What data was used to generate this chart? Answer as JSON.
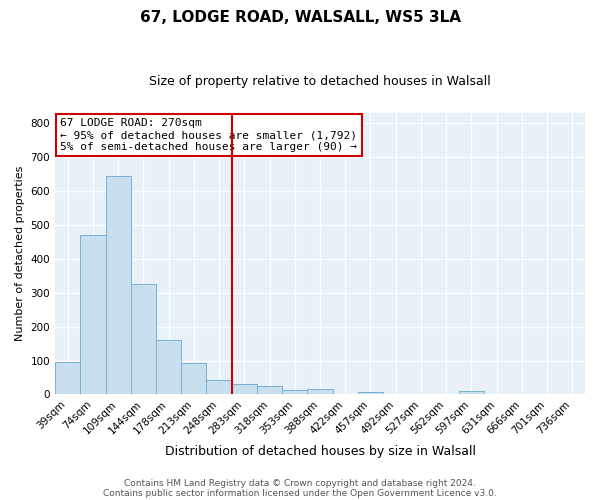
{
  "title": "67, LODGE ROAD, WALSALL, WS5 3LA",
  "subtitle": "Size of property relative to detached houses in Walsall",
  "xlabel": "Distribution of detached houses by size in Walsall",
  "ylabel": "Number of detached properties",
  "bin_labels": [
    "39sqm",
    "74sqm",
    "109sqm",
    "144sqm",
    "178sqm",
    "213sqm",
    "248sqm",
    "283sqm",
    "318sqm",
    "353sqm",
    "388sqm",
    "422sqm",
    "457sqm",
    "492sqm",
    "527sqm",
    "562sqm",
    "597sqm",
    "631sqm",
    "666sqm",
    "701sqm",
    "736sqm"
  ],
  "bar_values": [
    95,
    470,
    645,
    325,
    160,
    92,
    44,
    30,
    25,
    13,
    15,
    0,
    8,
    0,
    0,
    0,
    10,
    0,
    0,
    0,
    0
  ],
  "bar_color": "#c8dff0",
  "bar_edge_color": "#7ab0d4",
  "vline_x": 6.5,
  "vline_color": "#cc0000",
  "ylim": [
    0,
    830
  ],
  "yticks": [
    0,
    100,
    200,
    300,
    400,
    500,
    600,
    700,
    800
  ],
  "annotation_title": "67 LODGE ROAD: 270sqm",
  "annotation_line1": "← 95% of detached houses are smaller (1,792)",
  "annotation_line2": "5% of semi-detached houses are larger (90) →",
  "annotation_box_edge_color": "#cc0000",
  "footer_line1": "Contains HM Land Registry data © Crown copyright and database right 2024.",
  "footer_line2": "Contains public sector information licensed under the Open Government Licence v3.0.",
  "background_color": "#ffffff",
  "plot_bg_color": "#e8f0f8",
  "grid_color": "#ffffff",
  "title_fontsize": 11,
  "subtitle_fontsize": 9,
  "ylabel_fontsize": 8,
  "xlabel_fontsize": 9,
  "annotation_fontsize": 8,
  "tick_fontsize": 7.5
}
